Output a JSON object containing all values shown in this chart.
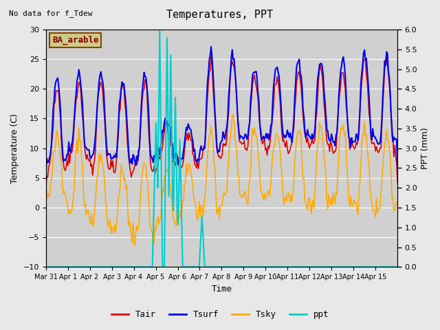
{
  "title": "Temperatures, PPT",
  "subtitle": "No data for f_Tdew",
  "xlabel": "Time",
  "ylabel_left": "Temperature (C)",
  "ylabel_right": "PPT (mm)",
  "legend_labels": [
    "Tair",
    "Tsurf",
    "Tsky",
    "ppt"
  ],
  "legend_colors": [
    "#dd0000",
    "#0000dd",
    "#ffaa00",
    "#00dddd"
  ],
  "box_label": "BA_arable",
  "box_color": "#cccc88",
  "box_text_color": "#880000",
  "ylim_left": [
    -10,
    30
  ],
  "ylim_right": [
    0.0,
    6.0
  ],
  "yticks_left": [
    -10,
    -5,
    0,
    5,
    10,
    15,
    20,
    25,
    30
  ],
  "yticks_right": [
    0.0,
    0.5,
    1.0,
    1.5,
    2.0,
    2.5,
    3.0,
    3.5,
    4.0,
    4.5,
    5.0,
    5.5,
    6.0
  ],
  "bg_color": "#e8e8e8",
  "plot_bg_color": "#d8d8d8",
  "grid_color": "#ffffff",
  "line_colors": {
    "Tair": "#dd0000",
    "Tsurf": "#0000ee",
    "Tsky": "#ffaa00",
    "ppt": "#00cccc"
  },
  "xtick_labels": [
    "Mar 31",
    "Apr 1",
    "Apr 2",
    "Apr 3",
    "Apr 4",
    "Apr 5",
    "Apr 6",
    "Apr 7",
    "Apr 8",
    "Apr 9",
    "Apr 10",
    "Apr 11",
    "Apr 12",
    "Apr 13",
    "Apr 14",
    "Apr 15"
  ],
  "n_days": 16
}
